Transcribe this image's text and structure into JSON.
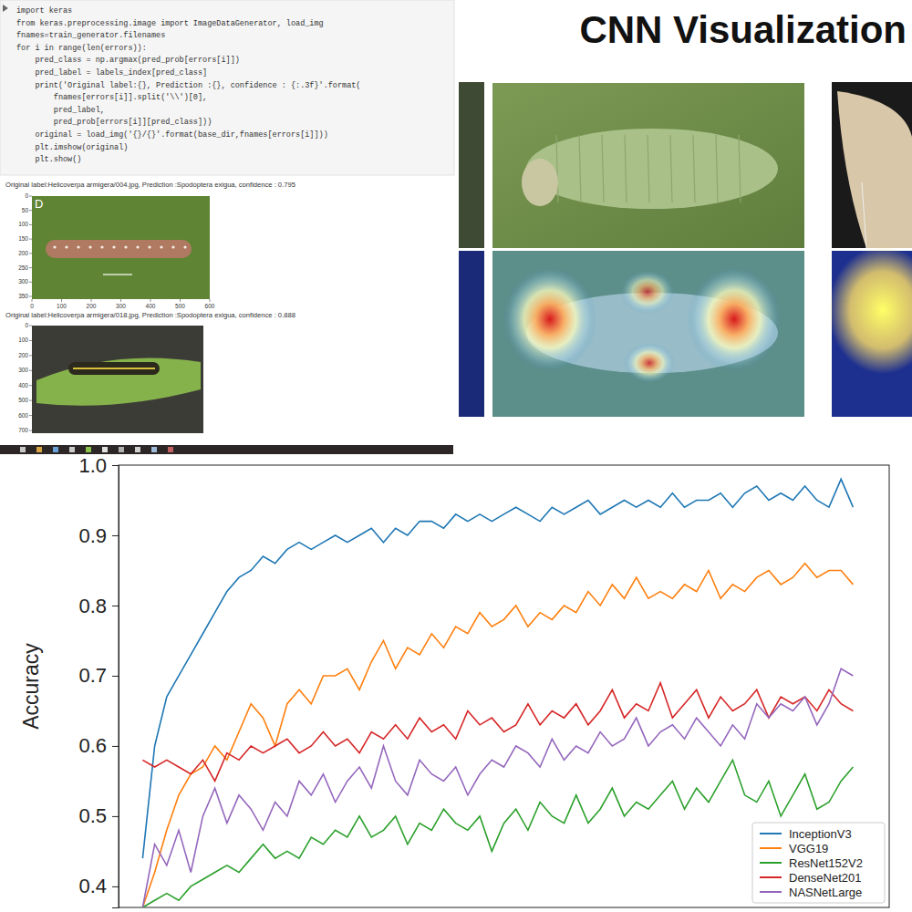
{
  "notebook": {
    "code": [
      "import keras",
      "from keras.preprocessing.image import ImageDataGenerator, load_img",
      "fnames=train_generator.filenames",
      "for i in range(len(errors)):",
      "    pred_class = np.argmax(pred_prob[errors[i]])",
      "    pred_label = labels_index[pred_class]",
      "    print('Original label:{}, Prediction :{}, confidence : {:.3f}'.format(",
      "        fnames[errors[i]].split('\\\\')[0],",
      "        pred_label,",
      "        pred_prob[errors[i]][pred_class]))",
      "    original = load_img('{}/{}'.format(base_dir,fnames[errors[i]]))",
      "    plt.imshow(original)",
      "    plt.show()"
    ],
    "outputs": [
      {
        "text": "Original label:Helicoverpa armigera/004.jpg, Prediction :Spodoptera exigua, confidence : 0.795",
        "panel_label": "D",
        "xticks": [
          0,
          100,
          200,
          300,
          400,
          500,
          600
        ],
        "yticks": [
          0,
          50,
          100,
          150,
          200,
          250,
          300,
          350
        ]
      },
      {
        "text": "Original label:Helicoverpa armigera/018.jpg, Prediction :Spodoptera exigua, confidence : 0.888",
        "yticks": [
          0,
          100,
          200,
          300,
          400,
          500,
          600,
          700
        ]
      }
    ]
  },
  "visualization": {
    "title": "CNN Visualization"
  },
  "chart_data": {
    "type": "line",
    "y_label": "Accuracy",
    "x": [
      1,
      2,
      3,
      4,
      5,
      6,
      7,
      8,
      9,
      10,
      11,
      12,
      13,
      14,
      15,
      16,
      17,
      18,
      19,
      20,
      21,
      22,
      23,
      24,
      25,
      26,
      27,
      28,
      29,
      30,
      31,
      32,
      33,
      34,
      35,
      36,
      37,
      38,
      39,
      40,
      41,
      42,
      43,
      44,
      45,
      46,
      47,
      48,
      49,
      50,
      51,
      52,
      53,
      54,
      55,
      56,
      57,
      58,
      59,
      60
    ],
    "xlim": [
      -1,
      63
    ],
    "ylim": [
      0.37,
      1.0
    ],
    "yticks": [
      0.4,
      0.5,
      0.6,
      0.7,
      0.8,
      0.9,
      {
        "value": 1.0,
        "label": "1.0"
      }
    ],
    "grid": false,
    "legend": "lower right",
    "tick_labels": "y",
    "series": [
      {
        "name": "InceptionV3",
        "color": "#1f77b4",
        "values": [
          0.44,
          0.6,
          0.67,
          0.7,
          0.73,
          0.76,
          0.79,
          0.82,
          0.84,
          0.85,
          0.87,
          0.86,
          0.88,
          0.89,
          0.88,
          0.89,
          0.9,
          0.89,
          0.9,
          0.91,
          0.89,
          0.91,
          0.9,
          0.92,
          0.92,
          0.91,
          0.93,
          0.92,
          0.93,
          0.92,
          0.93,
          0.94,
          0.93,
          0.92,
          0.94,
          0.93,
          0.94,
          0.95,
          0.93,
          0.94,
          0.95,
          0.94,
          0.95,
          0.94,
          0.96,
          0.94,
          0.95,
          0.95,
          0.96,
          0.94,
          0.96,
          0.97,
          0.95,
          0.96,
          0.95,
          0.97,
          0.95,
          0.94,
          0.98,
          0.94
        ]
      },
      {
        "name": "VGG19",
        "color": "#ff7f0e",
        "values": [
          0.37,
          0.42,
          0.48,
          0.53,
          0.56,
          0.57,
          0.6,
          0.58,
          0.62,
          0.66,
          0.64,
          0.6,
          0.66,
          0.68,
          0.66,
          0.7,
          0.7,
          0.71,
          0.68,
          0.72,
          0.75,
          0.71,
          0.74,
          0.73,
          0.76,
          0.74,
          0.77,
          0.76,
          0.79,
          0.77,
          0.78,
          0.8,
          0.77,
          0.79,
          0.78,
          0.8,
          0.79,
          0.82,
          0.8,
          0.83,
          0.81,
          0.84,
          0.81,
          0.82,
          0.81,
          0.83,
          0.82,
          0.85,
          0.81,
          0.83,
          0.82,
          0.84,
          0.85,
          0.83,
          0.84,
          0.86,
          0.84,
          0.85,
          0.85,
          0.83
        ]
      },
      {
        "name": "ResNet152V2",
        "color": "#2ca02c",
        "values": [
          0.37,
          0.38,
          0.39,
          0.38,
          0.4,
          0.41,
          0.42,
          0.43,
          0.42,
          0.44,
          0.46,
          0.44,
          0.45,
          0.44,
          0.47,
          0.46,
          0.48,
          0.47,
          0.5,
          0.47,
          0.48,
          0.5,
          0.46,
          0.49,
          0.48,
          0.51,
          0.49,
          0.48,
          0.5,
          0.45,
          0.49,
          0.51,
          0.48,
          0.52,
          0.5,
          0.49,
          0.53,
          0.49,
          0.51,
          0.54,
          0.5,
          0.52,
          0.51,
          0.53,
          0.55,
          0.51,
          0.54,
          0.52,
          0.55,
          0.58,
          0.53,
          0.52,
          0.55,
          0.5,
          0.53,
          0.56,
          0.51,
          0.52,
          0.55,
          0.57
        ]
      },
      {
        "name": "DenseNet201",
        "color": "#d62728",
        "values": [
          0.58,
          0.57,
          0.58,
          0.57,
          0.56,
          0.58,
          0.55,
          0.59,
          0.58,
          0.6,
          0.59,
          0.6,
          0.61,
          0.59,
          0.6,
          0.62,
          0.6,
          0.61,
          0.59,
          0.62,
          0.61,
          0.63,
          0.61,
          0.64,
          0.62,
          0.63,
          0.61,
          0.65,
          0.63,
          0.64,
          0.62,
          0.63,
          0.66,
          0.63,
          0.65,
          0.64,
          0.66,
          0.63,
          0.65,
          0.68,
          0.64,
          0.66,
          0.65,
          0.69,
          0.64,
          0.66,
          0.68,
          0.64,
          0.67,
          0.65,
          0.66,
          0.68,
          0.64,
          0.67,
          0.66,
          0.67,
          0.65,
          0.68,
          0.66,
          0.65
        ]
      },
      {
        "name": "NASNetLarge",
        "color": "#9467bd",
        "values": [
          0.37,
          0.46,
          0.43,
          0.48,
          0.42,
          0.5,
          0.54,
          0.49,
          0.53,
          0.51,
          0.48,
          0.52,
          0.5,
          0.55,
          0.53,
          0.56,
          0.52,
          0.55,
          0.57,
          0.54,
          0.6,
          0.55,
          0.53,
          0.58,
          0.56,
          0.55,
          0.57,
          0.53,
          0.56,
          0.58,
          0.57,
          0.6,
          0.59,
          0.57,
          0.61,
          0.58,
          0.6,
          0.59,
          0.62,
          0.6,
          0.61,
          0.64,
          0.6,
          0.62,
          0.63,
          0.61,
          0.64,
          0.62,
          0.6,
          0.63,
          0.61,
          0.66,
          0.64,
          0.66,
          0.65,
          0.67,
          0.63,
          0.66,
          0.71,
          0.7
        ]
      }
    ]
  }
}
